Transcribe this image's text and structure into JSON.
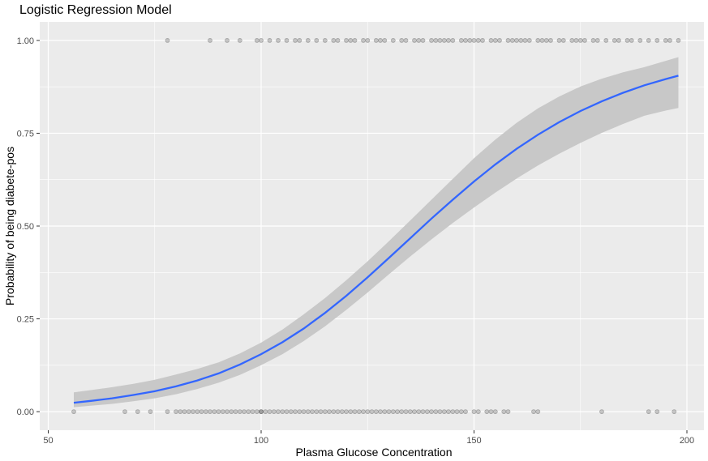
{
  "chart_data": {
    "type": "scatter",
    "title": "Logistic Regression Model",
    "xlabel": "Plasma Glucose Concentration",
    "ylabel": "Probability of being diabete-pos",
    "xlim": [
      48,
      204
    ],
    "ylim": [
      -0.05,
      1.05
    ],
    "x_ticks": [
      50,
      100,
      150,
      200
    ],
    "x_tick_labels": [
      "50",
      "100",
      "150",
      "200"
    ],
    "y_ticks": [
      0,
      0.25,
      0.5,
      0.75,
      1.0
    ],
    "y_tick_labels": [
      "0.00",
      "0.25",
      "0.50",
      "0.75",
      "1.00"
    ],
    "grid": true,
    "colors": {
      "panel": "#ebebeb",
      "grid_major": "#ffffff",
      "fit_line": "#3366ff",
      "confidence_band": "#c8c8c8",
      "points": "#000000"
    },
    "fit_curve": {
      "x": [
        56,
        60,
        65,
        70,
        75,
        80,
        85,
        90,
        95,
        100,
        105,
        110,
        115,
        120,
        125,
        130,
        135,
        140,
        145,
        150,
        155,
        160,
        165,
        170,
        175,
        180,
        185,
        190,
        195,
        198
      ],
      "y": [
        0.024,
        0.029,
        0.036,
        0.045,
        0.055,
        0.068,
        0.084,
        0.103,
        0.127,
        0.155,
        0.187,
        0.224,
        0.266,
        0.312,
        0.362,
        0.414,
        0.467,
        0.52,
        0.571,
        0.62,
        0.666,
        0.708,
        0.746,
        0.78,
        0.81,
        0.836,
        0.859,
        0.879,
        0.896,
        0.905
      ],
      "lower": [
        0.012,
        0.016,
        0.021,
        0.028,
        0.036,
        0.047,
        0.061,
        0.078,
        0.099,
        0.125,
        0.155,
        0.19,
        0.23,
        0.274,
        0.321,
        0.37,
        0.418,
        0.464,
        0.508,
        0.55,
        0.59,
        0.628,
        0.663,
        0.695,
        0.724,
        0.751,
        0.775,
        0.797,
        0.811,
        0.818
      ],
      "upper": [
        0.052,
        0.058,
        0.066,
        0.075,
        0.086,
        0.1,
        0.115,
        0.133,
        0.157,
        0.186,
        0.221,
        0.262,
        0.306,
        0.354,
        0.405,
        0.459,
        0.515,
        0.571,
        0.627,
        0.683,
        0.733,
        0.778,
        0.817,
        0.849,
        0.876,
        0.897,
        0.914,
        0.928,
        0.945,
        0.955
      ]
    },
    "series": [
      {
        "y": 1,
        "x": [
          78,
          88,
          92,
          95,
          99,
          100,
          102,
          104,
          106,
          108,
          109,
          111,
          113,
          115,
          117,
          118,
          120,
          121,
          122,
          124,
          125,
          127,
          128,
          129,
          131,
          133,
          134,
          136,
          137,
          138,
          140,
          141,
          142,
          143,
          144,
          145,
          147,
          148,
          149,
          150,
          151,
          152,
          154,
          155,
          156,
          158,
          159,
          160,
          161,
          162,
          163,
          165,
          166,
          167,
          168,
          170,
          171,
          173,
          174,
          175,
          176,
          178,
          179,
          181,
          183,
          184,
          186,
          187,
          189,
          191,
          193,
          195,
          196,
          198
        ]
      },
      {
        "y": 0,
        "x": [
          56,
          68,
          71,
          74,
          78,
          80,
          81,
          82,
          83,
          84,
          85,
          86,
          87,
          88,
          89,
          90,
          91,
          92,
          93,
          94,
          95,
          96,
          97,
          98,
          99,
          100,
          100,
          101,
          102,
          103,
          104,
          105,
          106,
          107,
          108,
          109,
          110,
          111,
          112,
          113,
          114,
          115,
          116,
          117,
          118,
          119,
          120,
          121,
          122,
          123,
          124,
          125,
          126,
          127,
          128,
          129,
          130,
          131,
          132,
          133,
          134,
          135,
          136,
          137,
          138,
          139,
          140,
          141,
          142,
          143,
          144,
          145,
          146,
          147,
          148,
          150,
          151,
          153,
          154,
          155,
          157,
          158,
          164,
          165,
          180,
          191,
          193,
          197
        ]
      }
    ]
  }
}
